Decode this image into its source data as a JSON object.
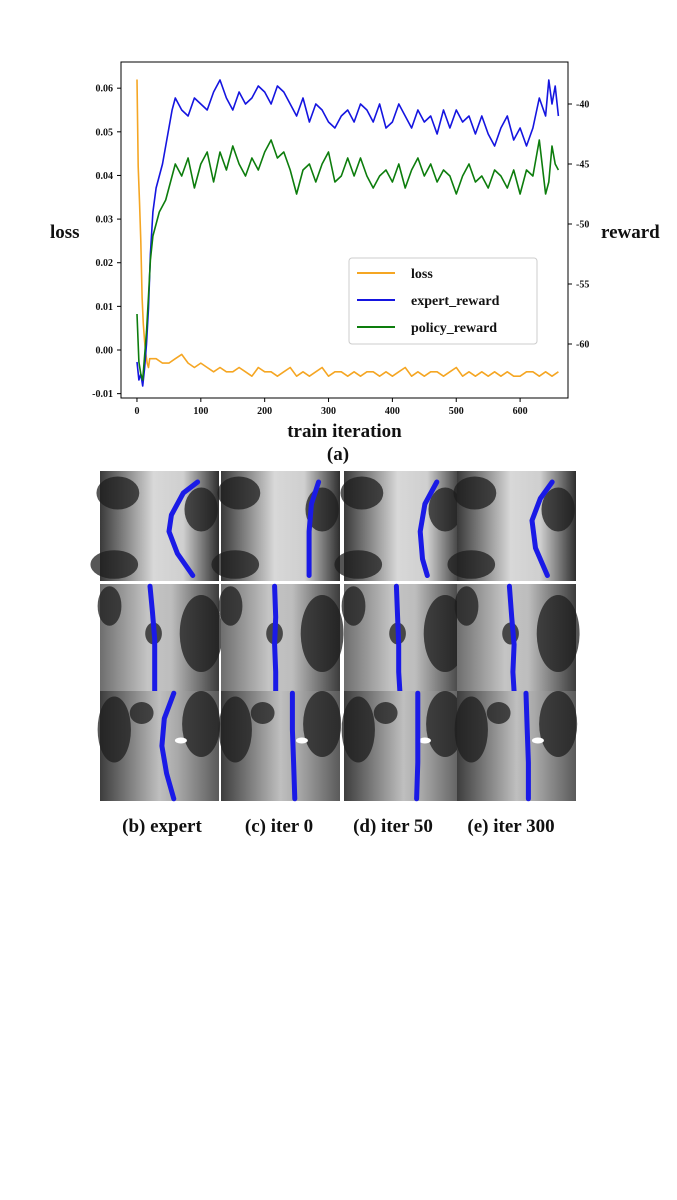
{
  "panel_a_label": "(a)",
  "chart_data": {
    "type": "line",
    "xlabel": "train iteration",
    "ylabel_left": "loss",
    "ylabel_right": "reward",
    "xlim": [
      -25,
      675
    ],
    "ylim_left": [
      -0.011,
      0.066
    ],
    "ylim_right": [
      -64.5,
      -36.5
    ],
    "x_ticks": [
      0,
      100,
      200,
      300,
      400,
      500,
      600
    ],
    "y_ticks_left": [
      -0.01,
      0.0,
      0.01,
      0.02,
      0.03,
      0.04,
      0.05,
      0.06
    ],
    "y_tick_labels_left": [
      "-0.01",
      "0.00",
      "0.01",
      "0.02",
      "0.03",
      "0.04",
      "0.05",
      "0.06"
    ],
    "y_ticks_right": [
      -60,
      -55,
      -50,
      -45,
      -40
    ],
    "y_tick_labels_right": [
      "-60",
      "-55",
      "-50",
      "-45",
      "-40"
    ],
    "grid": false,
    "legend_position": "center-right",
    "series": [
      {
        "name": "loss",
        "axis": "left",
        "color": "#f5a623",
        "x": [
          0,
          2,
          4,
          6,
          8,
          10,
          12,
          14,
          16,
          18,
          20,
          25,
          30,
          40,
          50,
          60,
          70,
          80,
          90,
          100,
          110,
          120,
          130,
          140,
          150,
          160,
          170,
          180,
          190,
          200,
          210,
          220,
          230,
          240,
          250,
          260,
          270,
          280,
          290,
          300,
          310,
          320,
          330,
          340,
          350,
          360,
          370,
          380,
          390,
          400,
          410,
          420,
          430,
          440,
          450,
          460,
          470,
          480,
          490,
          500,
          510,
          520,
          530,
          540,
          550,
          560,
          570,
          580,
          590,
          600,
          610,
          620,
          630,
          640,
          650,
          660
        ],
        "y": [
          0.062,
          0.042,
          0.034,
          0.025,
          0.012,
          0.006,
          0.002,
          -0.001,
          -0.003,
          -0.004,
          -0.002,
          -0.002,
          -0.002,
          -0.003,
          -0.003,
          -0.002,
          -0.001,
          -0.003,
          -0.004,
          -0.003,
          -0.004,
          -0.005,
          -0.004,
          -0.005,
          -0.005,
          -0.004,
          -0.005,
          -0.006,
          -0.004,
          -0.005,
          -0.005,
          -0.006,
          -0.005,
          -0.004,
          -0.006,
          -0.005,
          -0.006,
          -0.005,
          -0.004,
          -0.006,
          -0.005,
          -0.005,
          -0.006,
          -0.005,
          -0.006,
          -0.005,
          -0.005,
          -0.006,
          -0.005,
          -0.006,
          -0.005,
          -0.004,
          -0.006,
          -0.005,
          -0.006,
          -0.005,
          -0.005,
          -0.006,
          -0.005,
          -0.004,
          -0.006,
          -0.005,
          -0.006,
          -0.005,
          -0.006,
          -0.005,
          -0.006,
          -0.005,
          -0.006,
          -0.006,
          -0.005,
          -0.005,
          -0.006,
          -0.005,
          -0.006,
          -0.005
        ]
      },
      {
        "name": "expert_reward",
        "axis": "right",
        "color": "#1515e0",
        "x": [
          0,
          3,
          6,
          9,
          12,
          15,
          18,
          21,
          25,
          30,
          35,
          40,
          45,
          50,
          55,
          60,
          70,
          80,
          90,
          100,
          110,
          120,
          130,
          140,
          150,
          160,
          170,
          180,
          190,
          200,
          210,
          220,
          230,
          240,
          250,
          260,
          270,
          280,
          290,
          300,
          310,
          320,
          330,
          340,
          350,
          360,
          370,
          380,
          390,
          400,
          410,
          420,
          430,
          440,
          450,
          460,
          470,
          480,
          490,
          500,
          510,
          520,
          530,
          540,
          550,
          560,
          570,
          580,
          590,
          600,
          610,
          620,
          630,
          640,
          645,
          650,
          655,
          660
        ],
        "y": [
          -61.5,
          -63.0,
          -62.5,
          -63.5,
          -62.0,
          -60.0,
          -57.0,
          -52.5,
          -49.0,
          -47.0,
          -46.0,
          -45.0,
          -43.5,
          -42.0,
          -40.5,
          -39.5,
          -40.5,
          -41.0,
          -39.5,
          -40.0,
          -40.5,
          -39.0,
          -38.0,
          -39.5,
          -40.5,
          -39.0,
          -40.0,
          -39.5,
          -38.5,
          -39.0,
          -40.0,
          -38.5,
          -39.0,
          -40.0,
          -41.0,
          -39.5,
          -41.5,
          -40.0,
          -40.5,
          -41.5,
          -42.0,
          -41.0,
          -40.5,
          -41.5,
          -40.0,
          -40.5,
          -41.5,
          -40.0,
          -42.0,
          -41.5,
          -40.0,
          -41.0,
          -42.0,
          -40.5,
          -41.5,
          -41.0,
          -42.5,
          -40.5,
          -42.0,
          -40.5,
          -41.5,
          -41.0,
          -42.5,
          -41.0,
          -42.5,
          -43.5,
          -42.0,
          -41.0,
          -43.0,
          -42.0,
          -43.5,
          -42.0,
          -39.5,
          -41.0,
          -38.0,
          -40.0,
          -38.5,
          -41.0
        ]
      },
      {
        "name": "policy_reward",
        "axis": "right",
        "color": "#0d7d0d",
        "x": [
          0,
          3,
          6,
          9,
          12,
          15,
          18,
          21,
          25,
          30,
          35,
          40,
          45,
          50,
          55,
          60,
          70,
          80,
          90,
          100,
          110,
          120,
          130,
          140,
          150,
          160,
          170,
          180,
          190,
          200,
          210,
          220,
          230,
          240,
          250,
          260,
          270,
          280,
          290,
          300,
          310,
          320,
          330,
          340,
          350,
          360,
          370,
          380,
          390,
          400,
          410,
          420,
          430,
          440,
          450,
          460,
          470,
          480,
          490,
          500,
          510,
          520,
          530,
          540,
          550,
          560,
          570,
          580,
          590,
          600,
          610,
          620,
          630,
          640,
          645,
          650,
          655,
          660
        ],
        "y": [
          -57.5,
          -61.5,
          -62.5,
          -63.0,
          -61.0,
          -59.0,
          -56.0,
          -53.0,
          -51.0,
          -50.0,
          -49.0,
          -48.5,
          -48.0,
          -47.0,
          -46.0,
          -45.0,
          -46.0,
          -44.5,
          -47.0,
          -45.0,
          -44.0,
          -46.5,
          -44.0,
          -45.5,
          -43.5,
          -45.0,
          -46.0,
          -44.5,
          -45.5,
          -44.0,
          -43.0,
          -44.5,
          -44.0,
          -45.5,
          -47.5,
          -45.5,
          -45.0,
          -46.5,
          -45.0,
          -44.0,
          -46.5,
          -46.0,
          -44.5,
          -46.0,
          -44.5,
          -46.0,
          -47.0,
          -46.0,
          -45.5,
          -46.5,
          -45.0,
          -47.0,
          -45.5,
          -44.5,
          -46.0,
          -45.0,
          -46.5,
          -45.5,
          -46.0,
          -47.5,
          -46.0,
          -45.0,
          -46.5,
          -46.0,
          -47.0,
          -45.5,
          -46.0,
          -47.0,
          -45.5,
          -47.5,
          -45.5,
          -46.0,
          -43.0,
          -47.5,
          -46.5,
          -43.5,
          -45.0,
          -45.5
        ]
      }
    ]
  },
  "thumbnails": {
    "columns": [
      "(b) expert",
      "(c) iter 0",
      "(d) iter 50",
      "(e) iter 300"
    ],
    "rows": 3,
    "path_color": "#1a1ae6"
  }
}
